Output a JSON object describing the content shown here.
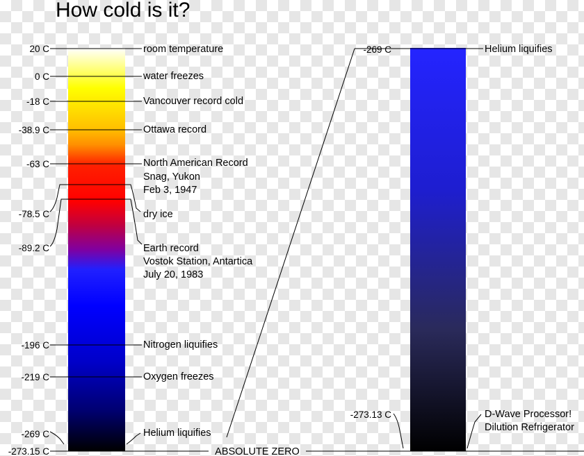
{
  "title": "How cold is it?",
  "absolute_zero_label": "ABSOLUTE ZERO",
  "left_scale": {
    "ticks": [
      {
        "value": "20 C",
        "labels": [
          "room temperature"
        ]
      },
      {
        "value": "0 C",
        "labels": [
          "water freezes"
        ]
      },
      {
        "value": "-18 C",
        "labels": [
          "Vancouver record cold"
        ]
      },
      {
        "value": "-38.9 C",
        "labels": [
          "Ottawa record"
        ]
      },
      {
        "value": "-63 C",
        "labels": [
          "North American Record",
          "Snag, Yukon",
          "Feb 3, 1947"
        ]
      },
      {
        "value": "-78.5 C",
        "labels": [
          "dry ice"
        ]
      },
      {
        "value": "-89.2 C",
        "labels": [
          "Earth record",
          "Vostok Station, Antartica",
          "July 20, 1983"
        ]
      },
      {
        "value": "-196 C",
        "labels": [
          "Nitrogen liquifies"
        ]
      },
      {
        "value": "-219 C",
        "labels": [
          "Oxygen freezes"
        ]
      },
      {
        "value": "-269 C",
        "labels": [
          "Helium liquifies"
        ]
      },
      {
        "value": "-273.15 C",
        "labels": []
      }
    ]
  },
  "right_scale": {
    "ticks": [
      {
        "value": "-269 C",
        "labels": [
          "Helium liquifies"
        ]
      },
      {
        "value": "-273.13 C",
        "labels": [
          "D-Wave Processor!",
          "Dilution Refrigerator"
        ]
      }
    ]
  },
  "colors": {
    "left_bar": [
      "#ffffff",
      "#ffff00",
      "#ffa500",
      "#ff0000",
      "#0000ff",
      "#000000"
    ],
    "right_bar": [
      "#2020ff",
      "#000000"
    ]
  }
}
